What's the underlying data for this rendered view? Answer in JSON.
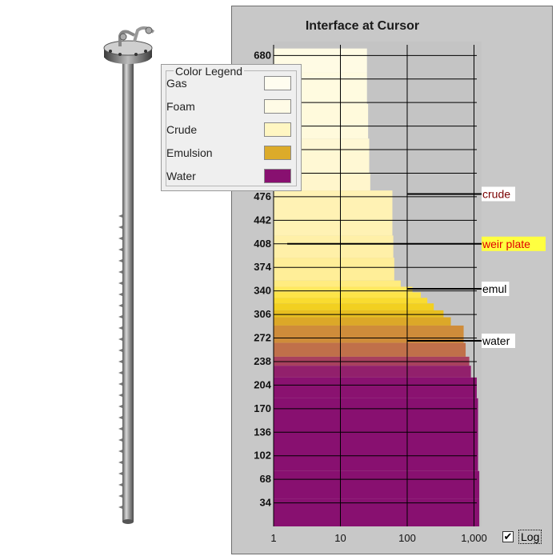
{
  "chart_data": {
    "type": "area",
    "title": "Interface at Cursor",
    "xscale": "log",
    "xlim": [
      1,
      1300
    ],
    "ylim": [
      0,
      700
    ],
    "x_ticks": [
      1,
      10,
      100,
      1000
    ],
    "x_tick_labels": [
      "1",
      "10",
      "100",
      "1,000"
    ],
    "y_ticks": [
      34,
      68,
      102,
      136,
      170,
      204,
      238,
      272,
      306,
      340,
      374,
      408,
      442,
      476,
      510,
      544,
      578,
      612,
      646,
      680
    ],
    "y_tick_labels": [
      "34",
      "68",
      "102",
      "136",
      "170",
      "204",
      "238",
      "272",
      "306",
      "340",
      "374",
      "408",
      "442",
      "476",
      "",
      "",
      "",
      "",
      "",
      "680"
    ],
    "grid": true,
    "profile": [
      {
        "y_top": 690,
        "x": 25,
        "color": "#fffbe4"
      },
      {
        "y_top": 655,
        "x": 25,
        "color": "#fffbe0"
      },
      {
        "y_top": 610,
        "x": 26,
        "color": "#fffadc"
      },
      {
        "y_top": 560,
        "x": 27,
        "color": "#fff8d4"
      },
      {
        "y_top": 510,
        "x": 28,
        "color": "#fff6cc"
      },
      {
        "y_top": 485,
        "x": 60,
        "color": "#fff2b4"
      },
      {
        "y_top": 420,
        "x": 62,
        "color": "#fff0a8"
      },
      {
        "y_top": 388,
        "x": 64,
        "color": "#ffee98"
      },
      {
        "y_top": 355,
        "x": 80,
        "color": "#ffec80"
      },
      {
        "y_top": 346,
        "x": 120,
        "color": "#ffe860"
      },
      {
        "y_top": 338,
        "x": 160,
        "color": "#fde448"
      },
      {
        "y_top": 330,
        "x": 200,
        "color": "#f9dc30"
      },
      {
        "y_top": 322,
        "x": 250,
        "color": "#f2d020"
      },
      {
        "y_top": 312,
        "x": 350,
        "color": "#e8bf20"
      },
      {
        "y_top": 302,
        "x": 450,
        "color": "#dca828"
      },
      {
        "y_top": 290,
        "x": 700,
        "color": "#cf8c3a"
      },
      {
        "y_top": 265,
        "x": 750,
        "color": "#c0704a"
      },
      {
        "y_top": 245,
        "x": 850,
        "color": "#a8405e"
      },
      {
        "y_top": 232,
        "x": 900,
        "color": "#92206c"
      },
      {
        "y_top": 215,
        "x": 1100,
        "color": "#8a1270"
      },
      {
        "y_top": 185,
        "x": 1150,
        "color": "#881070"
      },
      {
        "y_top": 80,
        "x": 1200,
        "color": "#881070"
      },
      {
        "y_top": 40,
        "x": 1200,
        "color": "#881070"
      }
    ],
    "markers": [
      {
        "label": "crude",
        "y": 480,
        "x_start": 100,
        "text_color": "#7a0000",
        "bg": "#ffffff"
      },
      {
        "label": "weir plate",
        "y": 408,
        "x_start": 1.6,
        "text_color": "#e00000",
        "bg": "#ffff40"
      },
      {
        "label": "emul",
        "y": 343,
        "x_start": 100,
        "text_color": "#000000",
        "bg": "#ffffff"
      },
      {
        "label": "water",
        "y": 268,
        "x_start": 100,
        "text_color": "#000000",
        "bg": "#ffffff"
      }
    ]
  },
  "legend": {
    "title": "Color Legend",
    "items": [
      {
        "label": "Gas",
        "color": "#fffdf0"
      },
      {
        "label": "Foam",
        "color": "#fffbe6"
      },
      {
        "label": "Crude",
        "color": "#fff6c2"
      },
      {
        "label": "Emulsion",
        "color": "#dcab2a"
      },
      {
        "label": "Water",
        "color": "#881070"
      }
    ]
  },
  "log_toggle": {
    "label": "Log",
    "checked": true,
    "check_glyph": "✔"
  }
}
